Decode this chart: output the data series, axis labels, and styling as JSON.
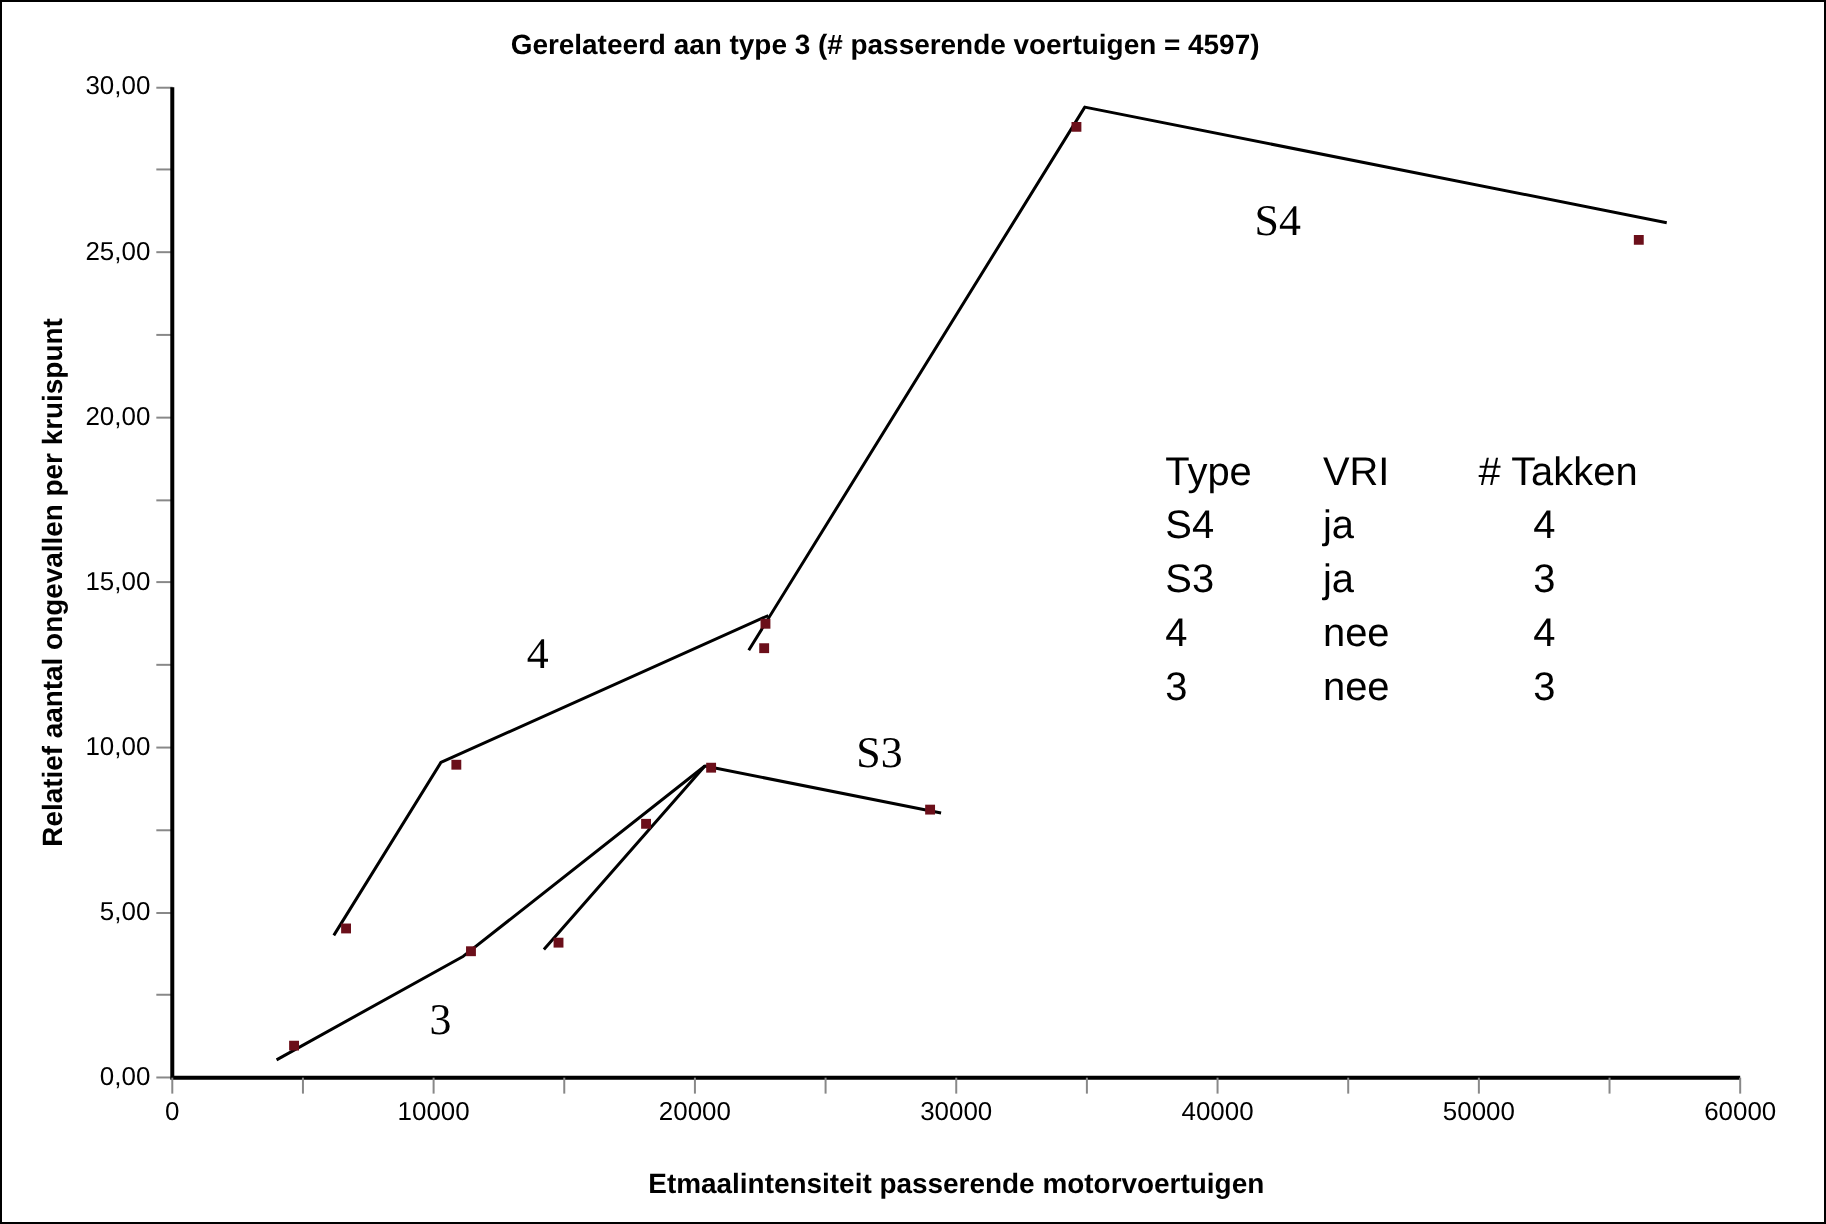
{
  "chart_data": {
    "type": "scatter",
    "title": "Gerelateerd aan type 3 (# passerende voertuigen = 4597)",
    "xlabel": "Etmaalintensiteit passerende motorvoertuigen",
    "ylabel": "Relatief aantal ongevallen per kruispunt",
    "xlim": [
      0,
      60000
    ],
    "ylim": [
      0,
      30
    ],
    "xticks": [
      0,
      {
        "value": 5000,
        "label": null
      },
      10000,
      {
        "value": 15000,
        "label": null
      },
      20000,
      {
        "value": 25000,
        "label": null
      },
      30000,
      {
        "value": 35000,
        "label": null
      },
      40000,
      {
        "value": 45000,
        "label": null
      },
      50000,
      {
        "value": 55000,
        "label": null
      },
      60000
    ],
    "yticks": [
      {
        "value": 0,
        "label": "0,00"
      },
      {
        "value": 2.5,
        "label": null
      },
      {
        "value": 5,
        "label": "5,00"
      },
      {
        "value": 7.5,
        "label": null
      },
      {
        "value": 10,
        "label": "10,00"
      },
      {
        "value": 12.5,
        "label": null
      },
      {
        "value": 15,
        "label": "15,00"
      },
      {
        "value": 17.5,
        "label": null
      },
      {
        "value": 20,
        "label": "20,00"
      },
      {
        "value": 22.5,
        "label": null
      },
      {
        "value": 25,
        "label": "25,00"
      },
      {
        "value": 27.5,
        "label": null
      },
      {
        "value": 30,
        "label": "30,00"
      }
    ],
    "grid": false,
    "legend": false,
    "series": [
      {
        "marker": "square",
        "color": "#6b0f1a",
        "x": [
          4660,
          6650,
          10870,
          11430,
          14780,
          18130,
          20620,
          22650,
          22700,
          29000,
          34600,
          56120
        ],
        "values": [
          0.97,
          4.52,
          9.48,
          3.83,
          4.09,
          7.69,
          9.39,
          13.01,
          13.75,
          8.12,
          28.8,
          25.38
        ]
      },
      {
        "type": "line",
        "marker": "none",
        "color": "#000000",
        "x": [
          3990,
          11140,
          20380
        ],
        "values": [
          0.54,
          3.68,
          9.44
        ]
      },
      {
        "type": "line",
        "marker": "none",
        "color": "#000000",
        "x": [
          14220,
          20380,
          29420
        ],
        "values": [
          3.88,
          9.44,
          8.02
        ]
      },
      {
        "type": "line",
        "marker": "none",
        "color": "#000000",
        "x": [
          6180,
          10280,
          22810
        ],
        "values": [
          4.31,
          9.55,
          14.0
        ]
      },
      {
        "type": "line",
        "marker": "none",
        "color": "#000000",
        "x": [
          22060,
          34920,
          57190
        ],
        "values": [
          12.95,
          29.4,
          25.9
        ]
      }
    ],
    "annotations": [
      "S4",
      "4",
      "S3",
      "3",
      "Type\tVRI\t# Takken",
      "S4\tja\t4",
      "S3\tja\t3",
      "4\tnee\t4",
      "3\tnee\t3"
    ]
  }
}
